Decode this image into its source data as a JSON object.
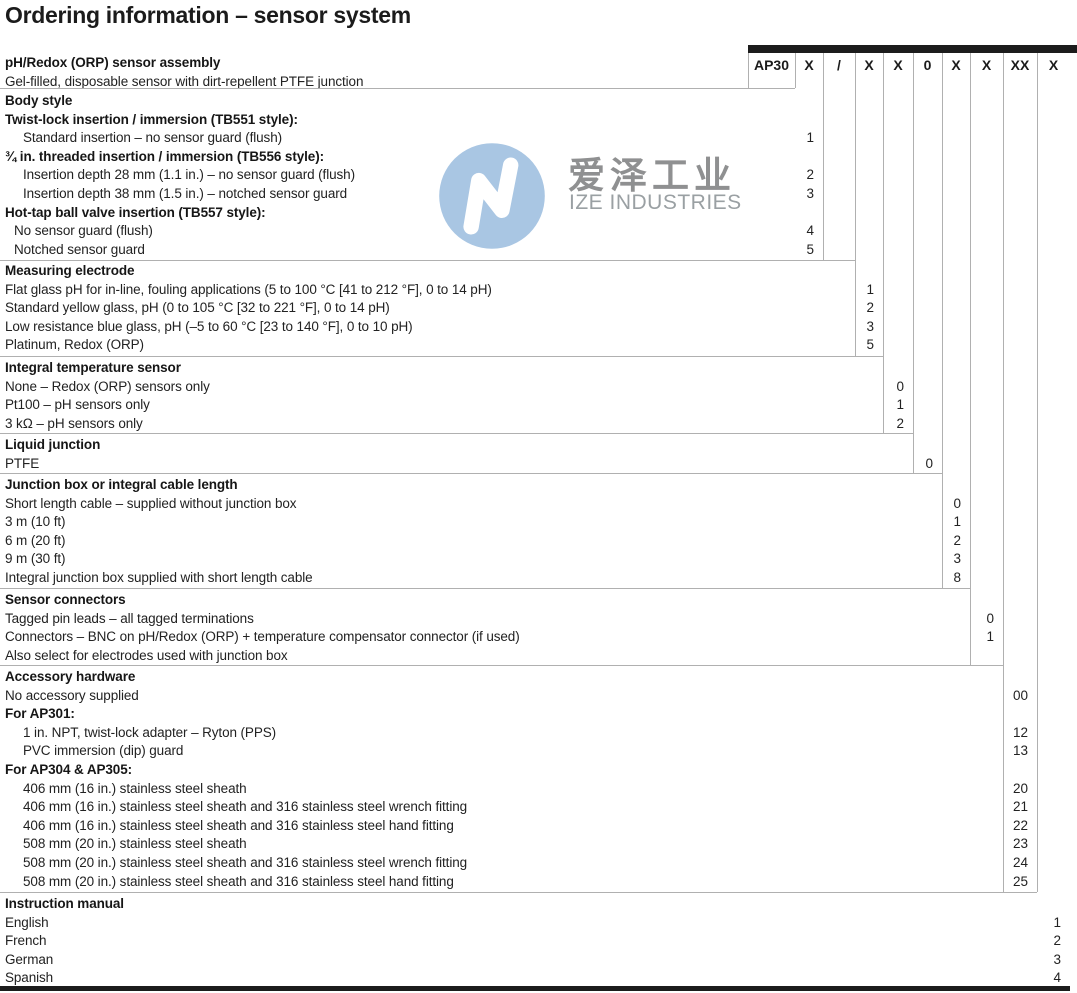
{
  "page_title": "Ordering information – sensor system",
  "watermark": {
    "cn_text": "爱泽工业",
    "en_text": "IZE INDUSTRIES",
    "circle_color": "#a9c6e3",
    "cn_color": "#8f9091",
    "en_color": "#9aa0a3"
  },
  "style_colors": {
    "bar_black": "#1c1c1c",
    "grid_gray": "#b0b0b0",
    "text": "#222222"
  },
  "code_header": {
    "cells": [
      "AP30",
      "X",
      "/",
      "X",
      "X",
      "0",
      "X",
      "X",
      "XX",
      "X"
    ]
  },
  "sections": [
    {
      "name": "sensor-assembly",
      "rows": [
        {
          "label": "pH/Redox (ORP) sensor assembly",
          "bold": true
        },
        {
          "label": "Gel-filled, disposable sensor with dirt-repellent PTFE junction"
        }
      ]
    },
    {
      "name": "body-style",
      "rows": [
        {
          "label": "Body style",
          "bold": true
        },
        {
          "label": "Twist-lock insertion / immersion (TB551 style):",
          "bold": true
        },
        {
          "label": "Standard insertion – no sensor guard (flush)",
          "indent": 2,
          "code": "1"
        },
        {
          "label": "¾ in. threaded insertion / immersion (TB556 style):",
          "bold": true
        },
        {
          "label": "Insertion depth 28 mm (1.1 in.) – no sensor guard (flush)",
          "indent": 2,
          "code": "2"
        },
        {
          "label": "Insertion depth 38 mm (1.5 in.) – notched sensor guard",
          "indent": 2,
          "code": "3"
        },
        {
          "label": "Hot-tap ball valve insertion (TB557 style):",
          "bold": true
        },
        {
          "label": "No sensor guard (flush)",
          "indent": 1,
          "code": "4"
        },
        {
          "label": "Notched sensor guard",
          "indent": 1,
          "code": "5"
        }
      ]
    },
    {
      "name": "measuring-electrode",
      "rows": [
        {
          "label": "Measuring electrode",
          "bold": true
        },
        {
          "label": "Flat glass pH for in-line, fouling applications (5 to 100 °C [41 to 212 °F], 0 to 14 pH)",
          "code": "1"
        },
        {
          "label": "Standard yellow glass, pH (0 to 105 °C [32 to 221 °F], 0 to 14 pH)",
          "code": "2"
        },
        {
          "label": "Low resistance blue glass, pH (–5 to 60 °C [23 to 140 °F], 0 to 10 pH)",
          "code": "3"
        },
        {
          "label": "Platinum, Redox (ORP)",
          "code": "5"
        }
      ]
    },
    {
      "name": "integral-temperature-sensor",
      "rows": [
        {
          "label": "Integral temperature sensor",
          "bold": true
        },
        {
          "label": "None – Redox (ORP) sensors only",
          "code": "0"
        },
        {
          "label": "Pt100 – pH sensors only",
          "code": "1"
        },
        {
          "label": "3 kΩ – pH sensors only",
          "code": "2"
        }
      ]
    },
    {
      "name": "liquid-junction",
      "rows": [
        {
          "label": "Liquid junction",
          "bold": true
        },
        {
          "label": "PTFE",
          "code": "0"
        }
      ]
    },
    {
      "name": "junction-box-or-cable-length",
      "rows": [
        {
          "label": "Junction box or integral cable length",
          "bold": true
        },
        {
          "label": "Short length cable – supplied without junction box",
          "code": "0"
        },
        {
          "label": "3 m (10 ft)",
          "code": "1"
        },
        {
          "label": "6 m (20 ft)",
          "code": "2"
        },
        {
          "label": "9 m (30 ft)",
          "code": "3"
        },
        {
          "label": "Integral junction box supplied with short length cable",
          "code": "8"
        }
      ]
    },
    {
      "name": "sensor-connectors",
      "rows": [
        {
          "label": "Sensor connectors",
          "bold": true
        },
        {
          "label": "Tagged pin leads – all tagged terminations",
          "code": "0"
        },
        {
          "label": "Connectors – BNC on pH/Redox (ORP) + temperature compensator connector (if used)",
          "code": "1"
        },
        {
          "label": "Also select for electrodes used with junction box"
        }
      ]
    },
    {
      "name": "accessory-hardware",
      "rows": [
        {
          "label": "Accessory hardware",
          "bold": true
        },
        {
          "label": "No accessory supplied",
          "code": "00"
        },
        {
          "label": "For AP301:",
          "bold": true
        },
        {
          "label": "1 in. NPT, twist-lock adapter – Ryton (PPS)",
          "indent": 2,
          "code": "12"
        },
        {
          "label": "PVC immersion (dip) guard",
          "indent": 2,
          "code": "13"
        },
        {
          "label": "For AP304 & AP305:",
          "bold": true
        },
        {
          "label": "406 mm (16 in.) stainless steel sheath",
          "indent": 2,
          "code": "20"
        },
        {
          "label": "406 mm (16 in.) stainless steel sheath and 316 stainless steel wrench fitting",
          "indent": 2,
          "code": "21"
        },
        {
          "label": "406 mm (16 in.) stainless steel sheath and 316 stainless steel hand fitting",
          "indent": 2,
          "code": "22"
        },
        {
          "label": "508 mm (20 in.) stainless steel sheath",
          "indent": 2,
          "code": "23"
        },
        {
          "label": "508 mm (20 in.) stainless steel sheath and 316 stainless steel wrench fitting",
          "indent": 2,
          "code": "24"
        },
        {
          "label": "508 mm (20 in.) stainless steel sheath and 316 stainless steel hand fitting",
          "indent": 2,
          "code": "25"
        }
      ]
    },
    {
      "name": "instruction-manual",
      "rows": [
        {
          "label": "Instruction manual",
          "bold": true
        },
        {
          "label": "English",
          "code": "1"
        },
        {
          "label": "French",
          "code": "2"
        },
        {
          "label": "German",
          "code": "3"
        },
        {
          "label": "Spanish",
          "code": "4"
        }
      ]
    }
  ]
}
